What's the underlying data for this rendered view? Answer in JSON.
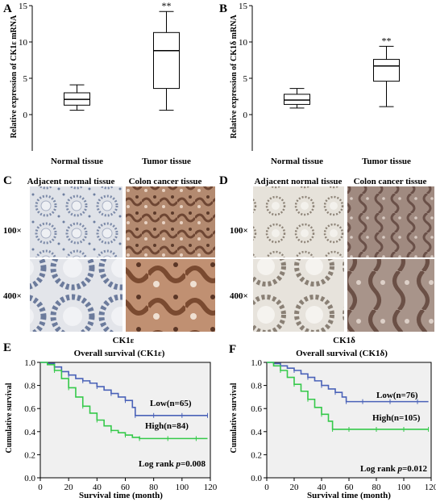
{
  "colors": {
    "box_line": "#000000",
    "km_low": "#4a62b8",
    "km_high": "#35c94a",
    "km_bg": "#f0f0f0",
    "tissue_normal_bg": "#d9dde6",
    "tissue_normal_stain": "#6d7ea0",
    "tissue_tumor_bg": "#b28b74",
    "tissue_tumor_stain": "#6e4633"
  },
  "panels": {
    "A": {
      "letter": "A",
      "ylabel": "Relative expression of CK1ε mRNA"
    },
    "B": {
      "letter": "B",
      "ylabel": "Relative expression of CK1δ mRNA"
    },
    "C": {
      "letter": "C",
      "col_left": "Adjacent normal tissue",
      "col_right": "Colon cancer tissue",
      "row_top": "100×",
      "row_bottom": "400×",
      "caption": "CK1ε"
    },
    "D": {
      "letter": "D",
      "col_left": "Adjacent normal tissue",
      "col_right": "Colon cancer tissue",
      "row_top": "100×",
      "row_bottom": "400×",
      "caption": "CK1δ"
    },
    "E": {
      "letter": "E",
      "title": "Overall survival (CK1ε)",
      "ylabel": "Cumulative survival",
      "xlabel": "Survival time (month)",
      "low_label": "Low(n=65)",
      "high_label": "High(n=84)",
      "logrank_prefix": "Log rank ",
      "logrank_p": "p",
      "logrank_value": "=0.008"
    },
    "F": {
      "letter": "F",
      "title": "Overall survival (CK1δ)",
      "ylabel": "Cumulative survival",
      "xlabel": "Survival time (month)",
      "low_label": "Low(n=76)",
      "high_label": "High(n=105)",
      "logrank_prefix": "Log rank ",
      "logrank_p": "p",
      "logrank_value": "=0.012"
    }
  },
  "chart_data": [
    {
      "id": "A",
      "type": "box",
      "categories": [
        "Normal tissue",
        "Tumor tissue"
      ],
      "ylabel": "Relative expression of CK1ε mRNA",
      "ylim": [
        -5,
        15
      ],
      "yticks": [
        0,
        5,
        10,
        15
      ],
      "boxes": [
        {
          "min": 0.6,
          "q1": 1.3,
          "median": 2.1,
          "q3": 3.0,
          "max": 4.1,
          "annotation": ""
        },
        {
          "min": 0.6,
          "q1": 3.6,
          "median": 8.8,
          "q3": 11.3,
          "max": 14.2,
          "annotation": "**"
        }
      ]
    },
    {
      "id": "B",
      "type": "box",
      "categories": [
        "Normal tissue",
        "Tumor tissue"
      ],
      "ylabel": "Relative expression of CK1δ mRNA",
      "ylim": [
        -5,
        15
      ],
      "yticks": [
        0,
        5,
        10,
        15
      ],
      "boxes": [
        {
          "min": 0.9,
          "q1": 1.4,
          "median": 2.0,
          "q3": 2.8,
          "max": 3.6,
          "annotation": ""
        },
        {
          "min": 1.1,
          "q1": 4.6,
          "median": 6.7,
          "q3": 7.6,
          "max": 9.4,
          "annotation": "**"
        }
      ]
    },
    {
      "id": "E",
      "type": "line",
      "title": "Overall survival (CK1ε)",
      "xlabel": "Survival time (month)",
      "ylabel": "Cumulative survival",
      "xlim": [
        0,
        120
      ],
      "ylim": [
        0,
        1.0
      ],
      "xticks": [
        0,
        20,
        40,
        60,
        80,
        100,
        120
      ],
      "yticks": [
        0.0,
        0.2,
        0.4,
        0.6,
        0.8,
        1.0
      ],
      "series": [
        {
          "name": "Low(n=65)",
          "color": "#4a62b8",
          "x": [
            0,
            5,
            10,
            15,
            20,
            25,
            30,
            35,
            40,
            45,
            50,
            55,
            60,
            65,
            67,
            70,
            80,
            90,
            100,
            110,
            118
          ],
          "y": [
            1.0,
            0.99,
            0.96,
            0.92,
            0.89,
            0.86,
            0.84,
            0.82,
            0.79,
            0.76,
            0.73,
            0.7,
            0.67,
            0.61,
            0.54,
            0.54,
            0.54,
            0.54,
            0.54,
            0.54,
            0.54
          ]
        },
        {
          "name": "High(n=84)",
          "color": "#35c94a",
          "x": [
            0,
            5,
            10,
            15,
            20,
            25,
            30,
            35,
            40,
            45,
            50,
            55,
            60,
            65,
            70,
            80,
            90,
            100,
            110,
            118
          ],
          "y": [
            1.0,
            0.98,
            0.93,
            0.86,
            0.78,
            0.7,
            0.62,
            0.56,
            0.5,
            0.45,
            0.41,
            0.39,
            0.37,
            0.35,
            0.34,
            0.34,
            0.34,
            0.34,
            0.34,
            0.34
          ]
        }
      ]
    },
    {
      "id": "F",
      "type": "line",
      "title": "Overall survival (CK1δ)",
      "xlabel": "Survival time (month)",
      "ylabel": "Cumulative survival",
      "xlim": [
        0,
        120
      ],
      "ylim": [
        0,
        1.0
      ],
      "xticks": [
        0,
        20,
        40,
        60,
        80,
        100,
        120
      ],
      "yticks": [
        0.0,
        0.2,
        0.4,
        0.6,
        0.8,
        1.0
      ],
      "series": [
        {
          "name": "Low(n=76)",
          "color": "#4a62b8",
          "x": [
            0,
            5,
            10,
            15,
            20,
            25,
            30,
            35,
            40,
            45,
            50,
            55,
            58,
            60,
            70,
            80,
            90,
            100,
            110,
            118
          ],
          "y": [
            1.0,
            0.99,
            0.97,
            0.95,
            0.93,
            0.9,
            0.87,
            0.84,
            0.8,
            0.77,
            0.74,
            0.7,
            0.66,
            0.66,
            0.66,
            0.66,
            0.66,
            0.66,
            0.66,
            0.66
          ]
        },
        {
          "name": "High(n=105)",
          "color": "#35c94a",
          "x": [
            0,
            5,
            10,
            15,
            20,
            25,
            30,
            35,
            40,
            45,
            48,
            50,
            60,
            70,
            80,
            90,
            100,
            110,
            118
          ],
          "y": [
            1.0,
            0.97,
            0.93,
            0.87,
            0.81,
            0.75,
            0.68,
            0.61,
            0.55,
            0.49,
            0.42,
            0.42,
            0.42,
            0.42,
            0.42,
            0.42,
            0.42,
            0.42,
            0.42
          ]
        }
      ]
    }
  ]
}
